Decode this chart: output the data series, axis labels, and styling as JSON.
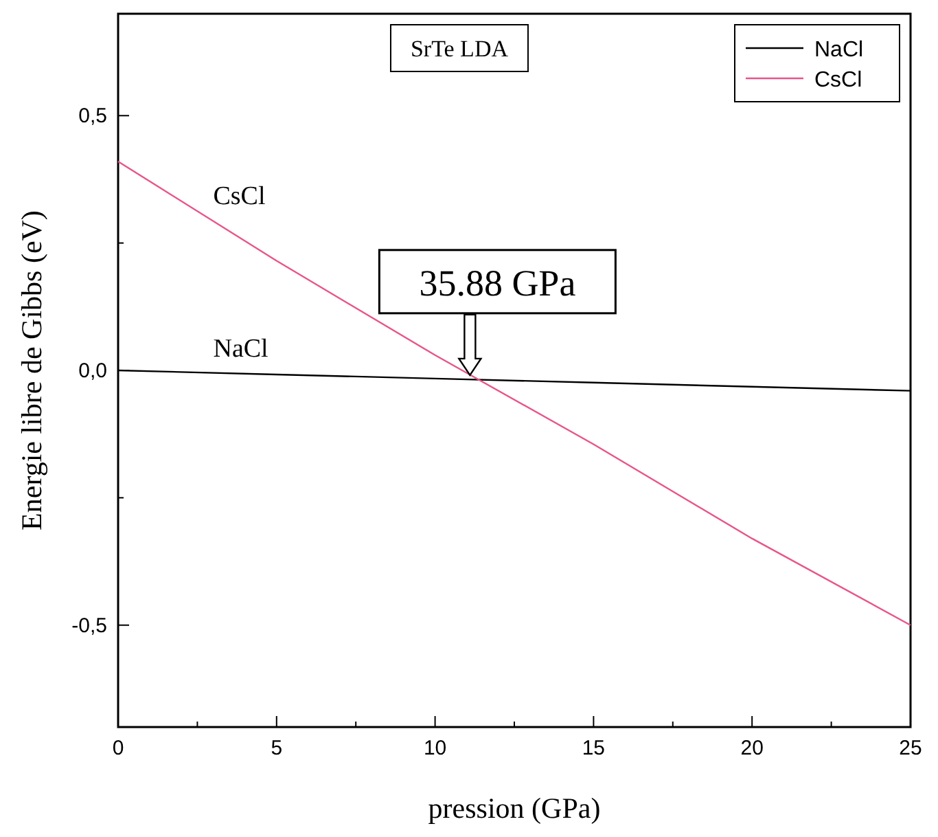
{
  "chart_data": {
    "type": "line",
    "xlabel": "pression (GPa)",
    "ylabel": "Energie libre de Gibbs (eV)",
    "x": [
      0,
      5,
      10,
      15,
      20,
      25
    ],
    "series": [
      {
        "name": "NaCl",
        "color": "#000000",
        "values": [
          0,
          -0.008,
          -0.016,
          -0.024,
          -0.032,
          -0.04
        ]
      },
      {
        "name": "CsCl",
        "color": "#e8558a",
        "values": [
          0.41,
          0.215,
          0.03,
          -0.145,
          -0.33,
          -0.5
        ]
      }
    ],
    "xlim": [
      0,
      25
    ],
    "xticks": [
      0,
      {
        "value": 2.5,
        "label": null
      },
      5,
      {
        "value": 7.5,
        "label": null
      },
      10,
      {
        "value": 12.5,
        "label": null
      },
      15,
      {
        "value": 17.5,
        "label": null
      },
      20,
      {
        "value": 22.5,
        "label": null
      },
      25
    ],
    "ylim": [
      -0.7,
      0.7
    ],
    "yticks": [
      {
        "value": -0.5,
        "label": "-0,5"
      },
      {
        "value": -0.25,
        "label": null
      },
      {
        "value": 0,
        "label": "0,0"
      },
      {
        "value": 0.25,
        "label": null
      },
      {
        "value": 0.5,
        "label": "0,5"
      }
    ],
    "grid": false,
    "legend": "top right",
    "marker": "none",
    "line_style": "solid",
    "annotations": [
      "SrTe LDA",
      {
        "text": "35.88 GPa",
        "x": 11.1,
        "y": -0.02
      },
      "CsCl",
      "NaCl"
    ]
  }
}
